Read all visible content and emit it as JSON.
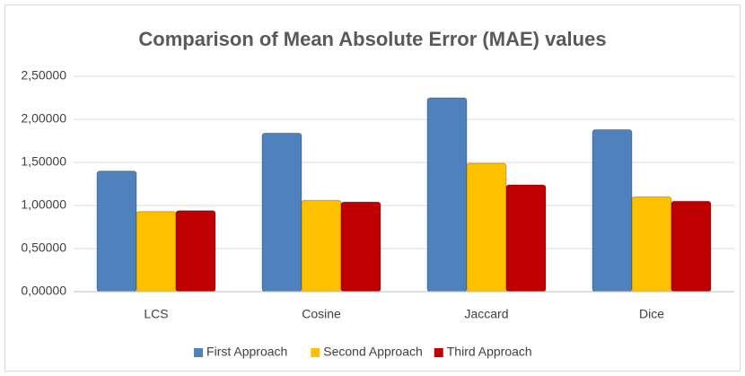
{
  "chart_data": {
    "type": "bar",
    "title": "Comparison of Mean Absolute Error (MAE) values",
    "categories": [
      "LCS",
      "Cosine",
      "Jaccard",
      "Dice"
    ],
    "series": [
      {
        "name": "First Approach",
        "color": "#4f81bd",
        "values": [
          1.4,
          1.84,
          2.25,
          1.88
        ]
      },
      {
        "name": "Second Approach",
        "color": "#ffc000",
        "values": [
          0.93,
          1.06,
          1.49,
          1.1
        ]
      },
      {
        "name": "Third Approach",
        "color": "#c00000",
        "values": [
          0.94,
          1.04,
          1.24,
          1.05
        ]
      }
    ],
    "ylim": [
      0,
      2.5
    ],
    "yticks": [
      {
        "value": 0,
        "label": "0,00000"
      },
      {
        "value": 0.5,
        "label": "0,50000"
      },
      {
        "value": 1,
        "label": "1,00000"
      },
      {
        "value": 1.5,
        "label": "1,50000"
      },
      {
        "value": 2,
        "label": "2,00000"
      },
      {
        "value": 2.5,
        "label": "2,50000"
      }
    ],
    "grid": true,
    "legend": "bottom"
  }
}
